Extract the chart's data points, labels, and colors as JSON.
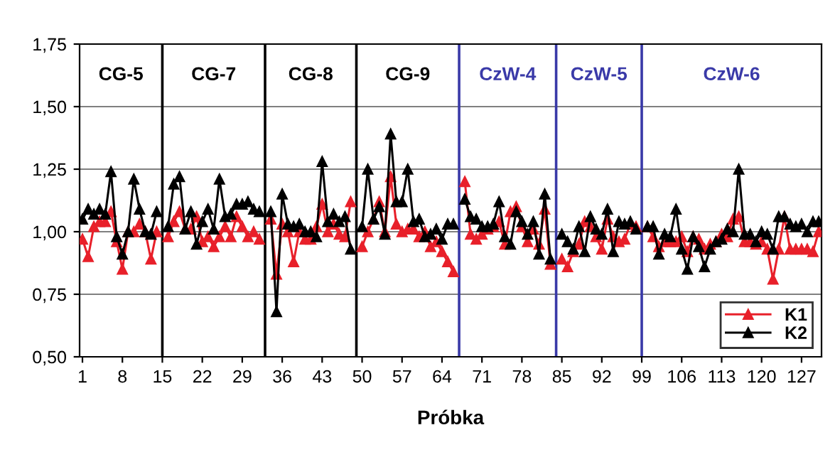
{
  "chart_data": {
    "type": "line",
    "xlabel": "Próbka",
    "x": [
      1,
      2,
      3,
      4,
      5,
      6,
      7,
      8,
      9,
      10,
      11,
      12,
      13,
      14,
      15,
      16,
      17,
      18,
      19,
      20,
      21,
      22,
      23,
      24,
      25,
      26,
      27,
      28,
      29,
      30,
      31,
      32,
      33,
      34,
      35,
      36,
      37,
      38,
      39,
      40,
      41,
      42,
      43,
      44,
      45,
      46,
      47,
      48,
      49,
      50,
      51,
      52,
      53,
      54,
      55,
      56,
      57,
      58,
      59,
      60,
      61,
      62,
      63,
      64,
      65,
      66,
      67,
      68,
      69,
      70,
      71,
      72,
      73,
      74,
      75,
      76,
      77,
      78,
      79,
      80,
      81,
      82,
      83,
      84,
      85,
      86,
      87,
      88,
      89,
      90,
      91,
      92,
      93,
      94,
      95,
      96,
      97,
      98,
      99,
      100,
      101,
      102,
      103,
      104,
      105,
      106,
      107,
      108,
      109,
      110,
      111,
      112,
      113,
      114,
      115,
      116,
      117,
      118,
      119,
      120,
      121,
      122,
      123,
      124,
      125,
      126,
      127,
      128,
      129,
      130
    ],
    "series": [
      {
        "name": "K1",
        "color": "#e8202a",
        "values": [
          0.97,
          0.9,
          1.02,
          1.04,
          1.04,
          1.08,
          0.96,
          0.85,
          1.0,
          1.0,
          1.03,
          1.0,
          0.89,
          1.0,
          null,
          0.98,
          1.04,
          1.08,
          1.01,
          1.01,
          1.06,
          0.96,
          0.98,
          0.94,
          0.98,
          1.02,
          0.98,
          1.06,
          1.02,
          0.98,
          1.0,
          0.97,
          null,
          1.05,
          0.83,
          1.03,
          1.0,
          0.88,
          1.0,
          0.97,
          0.97,
          1.02,
          1.11,
          1.0,
          1.03,
          0.99,
          0.98,
          1.12,
          null,
          0.94,
          1.0,
          1.05,
          1.12,
          1.0,
          1.22,
          1.03,
          1.0,
          1.01,
          1.01,
          0.98,
          1.0,
          0.94,
          0.96,
          0.92,
          0.88,
          0.84,
          null,
          1.2,
          0.99,
          0.97,
          0.99,
          1.01,
          1.02,
          1.04,
          0.95,
          1.08,
          1.1,
          1.02,
          0.96,
          1.01,
          0.95,
          1.09,
          0.87,
          null,
          0.89,
          0.86,
          0.92,
          0.95,
          1.04,
          1.02,
          0.98,
          0.93,
          1.05,
          0.98,
          0.96,
          0.97,
          1.03,
          1.02,
          null,
          1.02,
          0.98,
          0.94,
          0.96,
          0.96,
          0.96,
          0.98,
          0.92,
          0.98,
          0.97,
          0.93,
          0.95,
          0.96,
          0.99,
          0.98,
          1.05,
          1.06,
          0.96,
          0.96,
          0.95,
          0.96,
          0.93,
          0.81,
          0.93,
          1.06,
          0.93,
          0.93,
          0.93,
          0.93,
          0.92,
          1.0
        ]
      },
      {
        "name": "K2",
        "color": "#000000",
        "values": [
          1.05,
          1.09,
          1.07,
          1.09,
          1.07,
          1.24,
          0.98,
          0.91,
          1.0,
          1.21,
          1.09,
          1.0,
          0.99,
          1.08,
          null,
          1.02,
          1.19,
          1.22,
          1.01,
          1.08,
          0.95,
          1.04,
          1.09,
          1.01,
          1.21,
          1.06,
          1.07,
          1.11,
          1.11,
          1.12,
          1.09,
          1.08,
          null,
          1.08,
          0.68,
          1.15,
          1.03,
          1.02,
          1.03,
          1.0,
          1.0,
          0.98,
          1.28,
          1.04,
          1.07,
          1.04,
          1.06,
          0.93,
          null,
          1.02,
          1.25,
          1.05,
          1.1,
          0.99,
          1.39,
          1.12,
          1.12,
          1.25,
          1.04,
          1.05,
          0.98,
          0.99,
          1.01,
          0.97,
          1.03,
          1.03,
          null,
          1.13,
          1.06,
          1.05,
          1.02,
          1.02,
          1.03,
          1.12,
          0.98,
          0.95,
          1.08,
          1.04,
          0.99,
          1.04,
          0.91,
          1.15,
          0.89,
          null,
          0.99,
          0.96,
          0.93,
          1.02,
          0.92,
          1.06,
          1.01,
          0.99,
          1.09,
          0.92,
          1.04,
          1.03,
          1.04,
          1.01,
          null,
          1.02,
          1.02,
          0.91,
          0.99,
          0.98,
          1.09,
          0.93,
          0.85,
          0.98,
          0.94,
          0.86,
          0.93,
          0.96,
          0.97,
          1.01,
          1.0,
          1.25,
          0.99,
          0.99,
          0.96,
          1.0,
          0.99,
          0.93,
          1.06,
          1.06,
          1.03,
          1.02,
          1.03,
          1.0,
          1.04,
          1.04
        ]
      }
    ],
    "xlim": [
      0.5,
      130.5
    ],
    "xticks": [
      1,
      8,
      15,
      22,
      29,
      36,
      43,
      50,
      57,
      64,
      71,
      78,
      85,
      92,
      99,
      106,
      113,
      120,
      127
    ],
    "ylim": [
      0.5,
      1.75
    ],
    "yticks": [
      {
        "value": 0.5,
        "label": "0,50"
      },
      {
        "value": 0.75,
        "label": "0,75"
      },
      {
        "value": 1.0,
        "label": "1,00"
      },
      {
        "value": 1.25,
        "label": "1,25"
      },
      {
        "value": 1.5,
        "label": "1,50"
      },
      {
        "value": 1.75,
        "label": "1,75"
      }
    ],
    "ref_lines": [
      {
        "axis": "x",
        "value": 15,
        "color": "#000000"
      },
      {
        "axis": "x",
        "value": 33,
        "color": "#000000"
      },
      {
        "axis": "x",
        "value": 49,
        "color": "#000000"
      },
      {
        "axis": "x",
        "value": 67,
        "color": "#3a3aa8"
      },
      {
        "axis": "x",
        "value": 84,
        "color": "#3a3aa8"
      },
      {
        "axis": "x",
        "value": 99,
        "color": "#3a3aa8"
      }
    ],
    "annotations": [
      "CG-5",
      "CG-7",
      "CG-8",
      "CG-9",
      "CzW-4",
      "CzW-5",
      "CzW-6"
    ],
    "grid": "y",
    "legend": "bottom right",
    "marker": "triangle",
    "line_style": "solid"
  }
}
